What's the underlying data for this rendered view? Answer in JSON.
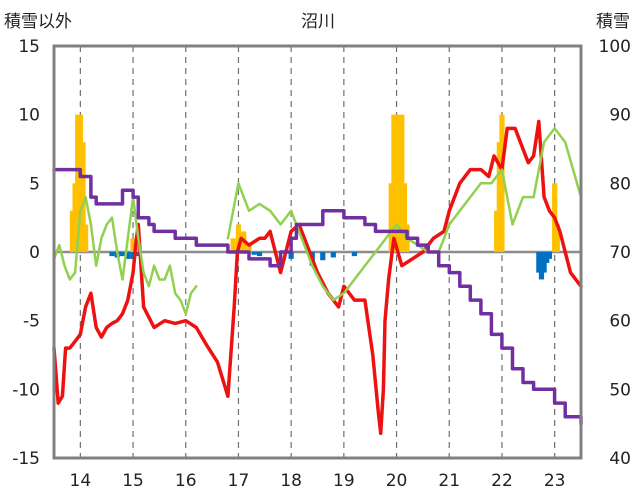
{
  "chart_data": {
    "type": "line",
    "title": "沼川",
    "ylabel_left": "積雪以外",
    "ylabel_right": "積雪",
    "y_left_range": [
      -15,
      15
    ],
    "y_right_range": [
      40,
      100
    ],
    "y_left_ticks": [
      "15",
      "10",
      "5",
      "0",
      "-5",
      "-10",
      "-15"
    ],
    "y_right_ticks": [
      "100",
      "90",
      "80",
      "70",
      "60",
      "50",
      "40"
    ],
    "x_range": [
      13.5,
      23.5
    ],
    "x_ticks": [
      "14",
      "15",
      "16",
      "17",
      "18",
      "19",
      "20",
      "21",
      "22",
      "23"
    ],
    "grid": "dashed-vertical",
    "colors": {
      "red": "#ee1111",
      "green": "#92d050",
      "purple": "#7030a0",
      "orange": "#ffc000",
      "blue": "#0070c0",
      "zero": "#8c8c8c",
      "frame": "#808080"
    },
    "series": [
      {
        "color_key": "red",
        "axis": "left",
        "style": "line",
        "x": [
          13.5,
          13.58,
          13.66,
          13.72,
          13.8,
          13.9,
          14.0,
          14.1,
          14.2,
          14.3,
          14.4,
          14.5,
          14.6,
          14.7,
          14.8,
          14.9,
          15.0,
          15.05,
          15.1,
          15.2,
          15.4,
          15.6,
          15.8,
          16.0,
          16.2,
          16.4,
          16.6,
          16.8,
          16.92,
          16.98,
          17.05,
          17.2,
          17.4,
          17.5,
          17.6,
          17.8,
          18.0,
          18.15,
          18.3,
          18.5,
          18.7,
          18.9,
          19.0,
          19.2,
          19.4,
          19.55,
          19.65,
          19.7,
          19.75,
          19.78,
          19.85,
          19.95,
          20.1,
          20.3,
          20.5,
          20.7,
          20.9,
          21.0,
          21.2,
          21.4,
          21.6,
          21.75,
          21.85,
          22.0,
          22.1,
          22.25,
          22.4,
          22.5,
          22.6,
          22.7,
          22.8,
          22.9,
          23.0,
          23.1,
          23.2,
          23.3,
          23.5
        ],
        "values": [
          -7,
          -11,
          -10.5,
          -7,
          -7,
          -6.5,
          -6,
          -4,
          -3,
          -5.5,
          -6.2,
          -5.5,
          -5.2,
          -5,
          -4.5,
          -3.5,
          -1.5,
          0.5,
          2,
          -4,
          -5.5,
          -5,
          -5.2,
          -5,
          -5.5,
          -6.8,
          -8,
          -10.5,
          -4,
          0,
          1,
          0.5,
          1,
          1,
          1.5,
          -1.5,
          1.5,
          2,
          0.5,
          -1.5,
          -3,
          -4,
          -2.5,
          -3.5,
          -3.5,
          -7.5,
          -11.5,
          -13.2,
          -10,
          -5,
          -2,
          1,
          -1,
          -0.5,
          0,
          1,
          1.5,
          3,
          5,
          6,
          6,
          5.5,
          7,
          6,
          9,
          9,
          7.5,
          6.5,
          7,
          9.5,
          4,
          3,
          2.5,
          1.5,
          0,
          -1.5,
          -2.5
        ]
      },
      {
        "color_key": "green",
        "axis": "left",
        "style": "line",
        "x": [
          13.5,
          13.6,
          13.7,
          13.8,
          13.9,
          14.0,
          14.1,
          14.2,
          14.3,
          14.4,
          14.5,
          14.6,
          14.7,
          14.8,
          14.9,
          15.0,
          15.1,
          15.2,
          15.3,
          15.4,
          15.5,
          15.6,
          15.7,
          15.8,
          15.9,
          16.0,
          16.1,
          16.2,
          16.5,
          16.8,
          17.0,
          17.2,
          17.4,
          17.6,
          17.8,
          18.0,
          18.2,
          18.4,
          18.6,
          18.8,
          19.0,
          19.2,
          19.4,
          19.6,
          19.8,
          20.0,
          20.2,
          20.4,
          20.6,
          20.8,
          20.9,
          21.0,
          21.2,
          21.4,
          21.6,
          21.8,
          22.0,
          22.2,
          22.4,
          22.6,
          22.8,
          23.0,
          23.2,
          23.5
        ],
        "values": [
          -0.5,
          0.5,
          -1,
          -2,
          -1.5,
          3,
          4,
          2,
          -1,
          1,
          2,
          2.5,
          0,
          -2,
          1,
          4,
          1,
          -1.5,
          -2.5,
          -1,
          -2,
          -2,
          -1,
          -3,
          -3.5,
          -4.5,
          -3,
          -2.5,
          null,
          1,
          5,
          3,
          3.5,
          3,
          2,
          3,
          1,
          -1,
          -2.5,
          -3.5,
          -3,
          -2,
          -1,
          0,
          1,
          2,
          1,
          0.5,
          0,
          0,
          1,
          2,
          3,
          4,
          5,
          5,
          6,
          2,
          4,
          4,
          8,
          9,
          8,
          4
        ]
      },
      {
        "color_key": "purple",
        "axis": "right",
        "style": "step",
        "x": [
          13.5,
          13.8,
          14.0,
          14.2,
          14.3,
          14.6,
          14.8,
          15.0,
          15.1,
          15.3,
          15.4,
          15.6,
          15.8,
          16.0,
          16.2,
          16.4,
          16.6,
          16.8,
          17.0,
          17.2,
          17.4,
          17.6,
          17.8,
          18.0,
          18.1,
          18.2,
          18.4,
          18.6,
          18.8,
          19.0,
          19.2,
          19.4,
          19.6,
          19.8,
          20.0,
          20.2,
          20.4,
          20.6,
          20.8,
          21.0,
          21.2,
          21.4,
          21.6,
          21.8,
          22.0,
          22.2,
          22.4,
          22.6,
          22.8,
          23.0,
          23.2,
          23.5
        ],
        "values": [
          82,
          82,
          81,
          78,
          77,
          77,
          79,
          78,
          75,
          74,
          73,
          73,
          72,
          72,
          71,
          71,
          71,
          70,
          70,
          69,
          69,
          68,
          70,
          72,
          74,
          74,
          74,
          76,
          76,
          75,
          75,
          74,
          73,
          73,
          73,
          72,
          71,
          70,
          68,
          67,
          65,
          63,
          61,
          58,
          56,
          53,
          51,
          50,
          50,
          48,
          46,
          45
        ]
      },
      {
        "color_key": "orange",
        "axis": "left",
        "style": "bars",
        "x": [
          13.85,
          13.9,
          13.95,
          14.0,
          14.05,
          14.1,
          15.0,
          15.05,
          16.9,
          17.0,
          17.1,
          17.2,
          19.9,
          19.95,
          20.0,
          20.05,
          20.1,
          20.15,
          20.2,
          21.9,
          21.95,
          22.0,
          23.0,
          23.05
        ],
        "values": [
          3,
          5,
          10,
          10,
          8,
          2,
          1,
          0.5,
          1,
          2,
          1.5,
          0.5,
          5,
          10,
          10,
          10,
          10,
          5,
          2,
          3,
          8,
          10,
          5,
          2
        ]
      },
      {
        "color_key": "blue",
        "axis": "left",
        "style": "bars",
        "x": [
          14.6,
          14.7,
          14.8,
          14.9,
          15.0,
          15.1,
          17.3,
          17.4,
          18.0,
          18.4,
          18.6,
          18.8,
          19.2,
          22.7,
          22.75,
          22.8,
          22.85,
          22.9
        ],
        "values": [
          -0.3,
          -0.4,
          -0.3,
          -0.5,
          -0.5,
          -0.3,
          -0.2,
          -0.3,
          -0.5,
          -1,
          -0.6,
          -0.4,
          -0.3,
          -1.5,
          -2,
          -1.5,
          -0.8,
          -0.5
        ]
      }
    ]
  }
}
